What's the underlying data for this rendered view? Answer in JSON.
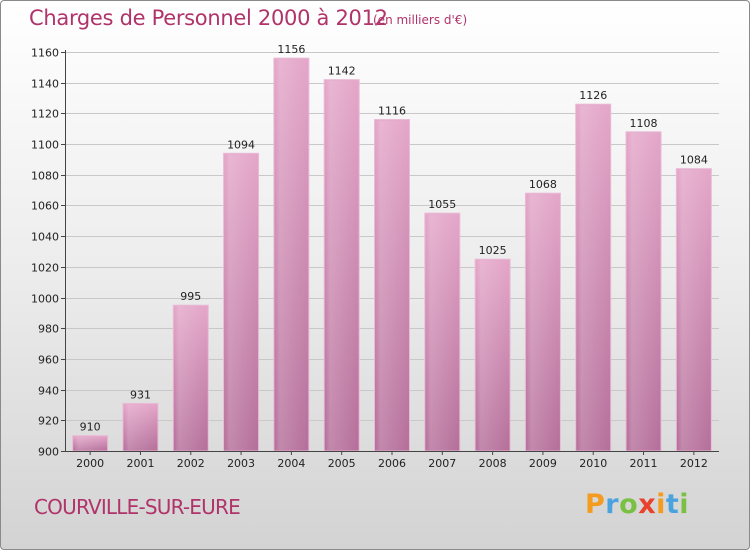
{
  "header": {
    "title": "Charges de Personnel 2000 à 2012",
    "subtitle": "(en milliers d'€)"
  },
  "footer": {
    "town": "COURVILLE-SUR-EURE",
    "logo_letters": [
      "P",
      "r",
      "o",
      "x",
      "i",
      "t",
      "i"
    ],
    "logo_colors": [
      "#f39c1f",
      "#4aa3df",
      "#7ac143",
      "#e8412c",
      "#f39c1f",
      "#4aa3df",
      "#7ac143"
    ]
  },
  "chart_data": {
    "type": "bar",
    "title": "Charges de Personnel 2000 à 2012",
    "subtitle": "(en milliers d'€)",
    "categories": [
      "2000",
      "2001",
      "2002",
      "2003",
      "2004",
      "2005",
      "2006",
      "2007",
      "2008",
      "2009",
      "2010",
      "2011",
      "2012"
    ],
    "values": [
      910,
      931,
      995,
      1094,
      1156,
      1142,
      1116,
      1055,
      1025,
      1068,
      1126,
      1108,
      1084
    ],
    "ylim": [
      900,
      1160
    ],
    "yticks": [
      900,
      920,
      940,
      960,
      980,
      1000,
      1020,
      1040,
      1060,
      1080,
      1100,
      1120,
      1140,
      1160
    ],
    "grid": true,
    "bar_color": "#d98fb8"
  }
}
